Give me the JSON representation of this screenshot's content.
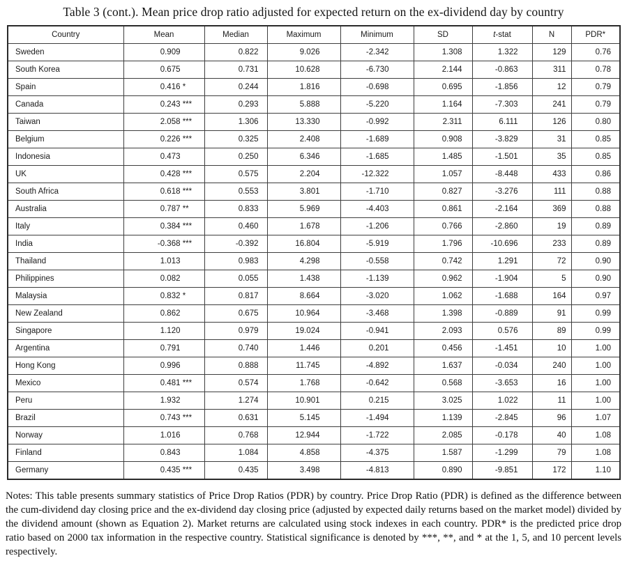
{
  "title": "Table 3 (cont.). Mean price drop ratio adjusted for expected return on the ex-dividend day by country",
  "table": {
    "headers": [
      "Country",
      "Mean",
      "Median",
      "Maximum",
      "Minimum",
      "SD",
      "t-stat",
      "N",
      "PDR*"
    ],
    "rows": [
      {
        "country": "Sweden",
        "mean": "0.909",
        "stars": "",
        "median": "0.822",
        "maximum": "9.026",
        "minimum": "-2.342",
        "sd": "1.308",
        "tstat": "1.322",
        "n": "129",
        "pdr": "0.76"
      },
      {
        "country": "South Korea",
        "mean": "0.675",
        "stars": "",
        "median": "0.731",
        "maximum": "10.628",
        "minimum": "-6.730",
        "sd": "2.144",
        "tstat": "-0.863",
        "n": "311",
        "pdr": "0.78"
      },
      {
        "country": "Spain",
        "mean": "0.416",
        "stars": "*",
        "median": "0.244",
        "maximum": "1.816",
        "minimum": "-0.698",
        "sd": "0.695",
        "tstat": "-1.856",
        "n": "12",
        "pdr": "0.79"
      },
      {
        "country": "Canada",
        "mean": "0.243",
        "stars": "***",
        "median": "0.293",
        "maximum": "5.888",
        "minimum": "-5.220",
        "sd": "1.164",
        "tstat": "-7.303",
        "n": "241",
        "pdr": "0.79"
      },
      {
        "country": "Taiwan",
        "mean": "2.058",
        "stars": "***",
        "median": "1.306",
        "maximum": "13.330",
        "minimum": "-0.992",
        "sd": "2.311",
        "tstat": "6.111",
        "n": "126",
        "pdr": "0.80"
      },
      {
        "country": "Belgium",
        "mean": "0.226",
        "stars": "***",
        "median": "0.325",
        "maximum": "2.408",
        "minimum": "-1.689",
        "sd": "0.908",
        "tstat": "-3.829",
        "n": "31",
        "pdr": "0.85"
      },
      {
        "country": "Indonesia",
        "mean": "0.473",
        "stars": "",
        "median": "0.250",
        "maximum": "6.346",
        "minimum": "-1.685",
        "sd": "1.485",
        "tstat": "-1.501",
        "n": "35",
        "pdr": "0.85"
      },
      {
        "country": "UK",
        "mean": "0.428",
        "stars": "***",
        "median": "0.575",
        "maximum": "2.204",
        "minimum": "-12.322",
        "sd": "1.057",
        "tstat": "-8.448",
        "n": "433",
        "pdr": "0.86"
      },
      {
        "country": "South Africa",
        "mean": "0.618",
        "stars": "***",
        "median": "0.553",
        "maximum": "3.801",
        "minimum": "-1.710",
        "sd": "0.827",
        "tstat": "-3.276",
        "n": "111",
        "pdr": "0.88"
      },
      {
        "country": "Australia",
        "mean": "0.787",
        "stars": "**",
        "median": "0.833",
        "maximum": "5.969",
        "minimum": "-4.403",
        "sd": "0.861",
        "tstat": "-2.164",
        "n": "369",
        "pdr": "0.88"
      },
      {
        "country": "Italy",
        "mean": "0.384",
        "stars": "***",
        "median": "0.460",
        "maximum": "1.678",
        "minimum": "-1.206",
        "sd": "0.766",
        "tstat": "-2.860",
        "n": "19",
        "pdr": "0.89"
      },
      {
        "country": "India",
        "mean": "-0.368",
        "stars": "***",
        "median": "-0.392",
        "maximum": "16.804",
        "minimum": "-5.919",
        "sd": "1.796",
        "tstat": "-10.696",
        "n": "233",
        "pdr": "0.89"
      },
      {
        "country": "Thailand",
        "mean": "1.013",
        "stars": "",
        "median": "0.983",
        "maximum": "4.298",
        "minimum": "-0.558",
        "sd": "0.742",
        "tstat": "1.291",
        "n": "72",
        "pdr": "0.90"
      },
      {
        "country": "Philippines",
        "mean": "0.082",
        "stars": "",
        "median": "0.055",
        "maximum": "1.438",
        "minimum": "-1.139",
        "sd": "0.962",
        "tstat": "-1.904",
        "n": "5",
        "pdr": "0.90"
      },
      {
        "country": "Malaysia",
        "mean": "0.832",
        "stars": "*",
        "median": "0.817",
        "maximum": "8.664",
        "minimum": "-3.020",
        "sd": "1.062",
        "tstat": "-1.688",
        "n": "164",
        "pdr": "0.97"
      },
      {
        "country": "New Zealand",
        "mean": "0.862",
        "stars": "",
        "median": "0.675",
        "maximum": "10.964",
        "minimum": "-3.468",
        "sd": "1.398",
        "tstat": "-0.889",
        "n": "91",
        "pdr": "0.99"
      },
      {
        "country": "Singapore",
        "mean": "1.120",
        "stars": "",
        "median": "0.979",
        "maximum": "19.024",
        "minimum": "-0.941",
        "sd": "2.093",
        "tstat": "0.576",
        "n": "89",
        "pdr": "0.99"
      },
      {
        "country": "Argentina",
        "mean": "0.791",
        "stars": "",
        "median": "0.740",
        "maximum": "1.446",
        "minimum": "0.201",
        "sd": "0.456",
        "tstat": "-1.451",
        "n": "10",
        "pdr": "1.00"
      },
      {
        "country": "Hong Kong",
        "mean": "0.996",
        "stars": "",
        "median": "0.888",
        "maximum": "11.745",
        "minimum": "-4.892",
        "sd": "1.637",
        "tstat": "-0.034",
        "n": "240",
        "pdr": "1.00"
      },
      {
        "country": "Mexico",
        "mean": "0.481",
        "stars": "***",
        "median": "0.574",
        "maximum": "1.768",
        "minimum": "-0.642",
        "sd": "0.568",
        "tstat": "-3.653",
        "n": "16",
        "pdr": "1.00"
      },
      {
        "country": "Peru",
        "mean": "1.932",
        "stars": "",
        "median": "1.274",
        "maximum": "10.901",
        "minimum": "0.215",
        "sd": "3.025",
        "tstat": "1.022",
        "n": "11",
        "pdr": "1.00"
      },
      {
        "country": "Brazil",
        "mean": "0.743",
        "stars": "***",
        "median": "0.631",
        "maximum": "5.145",
        "minimum": "-1.494",
        "sd": "1.139",
        "tstat": "-2.845",
        "n": "96",
        "pdr": "1.07"
      },
      {
        "country": "Norway",
        "mean": "1.016",
        "stars": "",
        "median": "0.768",
        "maximum": "12.944",
        "minimum": "-1.722",
        "sd": "2.085",
        "tstat": "-0.178",
        "n": "40",
        "pdr": "1.08"
      },
      {
        "country": "Finland",
        "mean": "0.843",
        "stars": "",
        "median": "1.084",
        "maximum": "4.858",
        "minimum": "-4.375",
        "sd": "1.587",
        "tstat": "-1.299",
        "n": "79",
        "pdr": "1.08"
      },
      {
        "country": "Germany",
        "mean": "0.435",
        "stars": "***",
        "median": "0.435",
        "maximum": "3.498",
        "minimum": "-4.813",
        "sd": "0.890",
        "tstat": "-9.851",
        "n": "172",
        "pdr": "1.10"
      }
    ]
  },
  "notes": "Notes: This table presents summary statistics of Price Drop Ratios (PDR) by country. Price Drop Ratio (PDR) is defined as the difference between the cum-dividend day closing price and the ex-dividend day closing price (adjusted by expected daily returns based on the market model) divided by the dividend amount (shown as Equation 2). Market returns are calculated using stock indexes in each country. PDR* is the predicted price drop ratio based on 2000 tax information in the respective country. Statistical significance is denoted by ***, **, and * at the 1, 5, and 10 percent levels respectively."
}
